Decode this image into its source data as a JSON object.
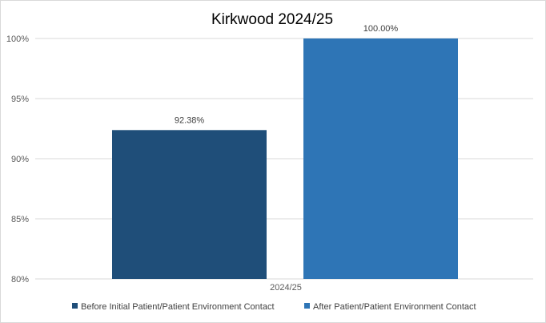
{
  "chart_data": {
    "type": "bar",
    "title": "Kirkwood 2024/25",
    "categories": [
      "2024/25"
    ],
    "series": [
      {
        "name": "Before Initial Patient/Patient Environment Contact",
        "values": [
          92.38
        ],
        "color": "#1f4e79",
        "label": "92.38%"
      },
      {
        "name": "After Patient/Patient Environment Contact",
        "values": [
          100.0
        ],
        "color": "#2e75b6",
        "label": "100.00%"
      }
    ],
    "ylim": [
      80,
      100
    ],
    "yticks": [
      80,
      85,
      90,
      95,
      100
    ],
    "ytick_labels": [
      "80%",
      "85%",
      "90%",
      "95%",
      "100%"
    ],
    "xlabel": "",
    "ylabel": "",
    "grid": true,
    "legend": "bottom"
  }
}
